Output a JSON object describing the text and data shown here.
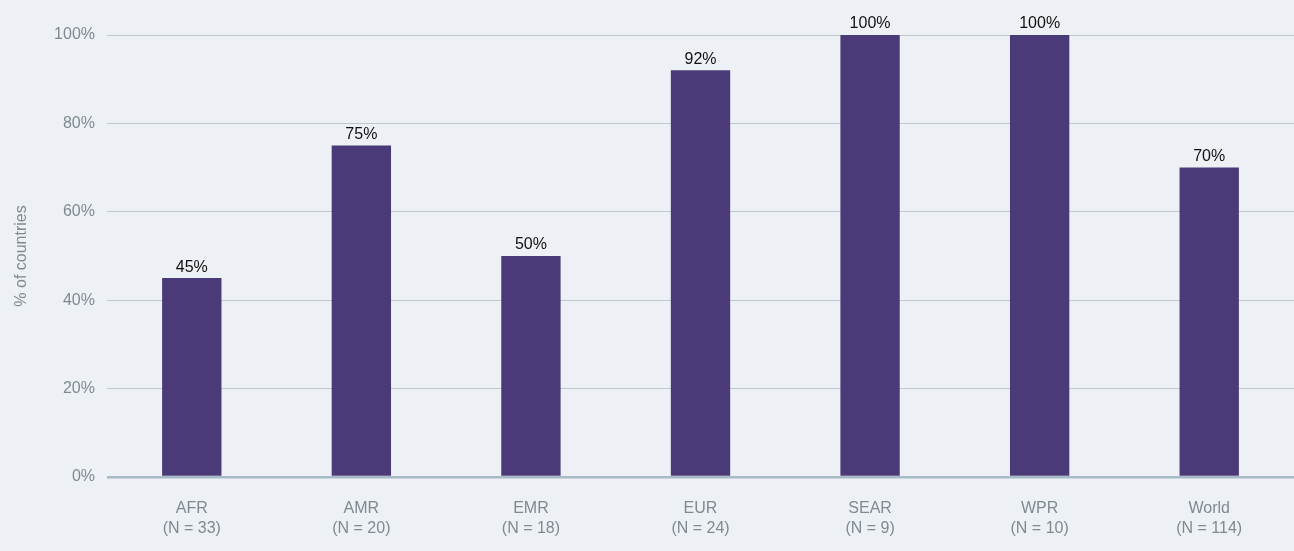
{
  "chart_data": {
    "type": "bar",
    "ylabel": "% of countries",
    "categories": [
      "AFR\n(N = 33)",
      "AMR\n(N = 20)",
      "EMR\n(N = 18)",
      "EUR\n(N = 24)",
      "SEAR\n(N = 9)",
      "WPR\n(N = 10)",
      "World\n(N = 114)"
    ],
    "values": [
      45,
      75,
      50,
      92,
      100,
      100,
      70
    ],
    "value_labels": [
      "45%",
      "75%",
      "50%",
      "92%",
      "100%",
      "100%",
      "70%"
    ],
    "color": "#4a3a78",
    "ylim": [
      0,
      100
    ],
    "yticks": [
      {
        "value": 0,
        "label": "0%"
      },
      {
        "value": 20,
        "label": "20%"
      },
      {
        "value": 40,
        "label": "40%"
      },
      {
        "value": 60,
        "label": "60%"
      },
      {
        "value": 80,
        "label": "80%"
      },
      {
        "value": 100,
        "label": "100%"
      }
    ],
    "grid": "y"
  }
}
